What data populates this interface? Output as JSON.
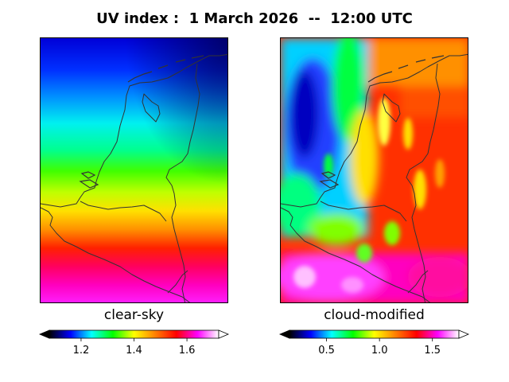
{
  "title": "UV index :  1 March 2026  --  12:00 UTC",
  "panels": [
    {
      "caption": "clear-sky",
      "colorbar": {
        "min": 1.08,
        "max": 1.72,
        "ticks": [
          "1.2",
          "1.4",
          "1.6"
        ],
        "tick_values": [
          1.2,
          1.4,
          1.6
        ],
        "extend": "both"
      }
    },
    {
      "caption": "cloud-modified",
      "colorbar": {
        "min": 0.15,
        "max": 1.75,
        "ticks": [
          "0.5",
          "1.0",
          "1.5"
        ],
        "tick_values": [
          0.5,
          1.0,
          1.5
        ],
        "extend": "both"
      }
    }
  ],
  "colormap": [
    "#000000",
    "#0000ff",
    "#00ffff",
    "#00ff00",
    "#ffff00",
    "#ff8000",
    "#ff0000",
    "#ff00ff",
    "#ffffff"
  ],
  "colors": {
    "border_lines": "#333333",
    "frame": "#000000"
  }
}
